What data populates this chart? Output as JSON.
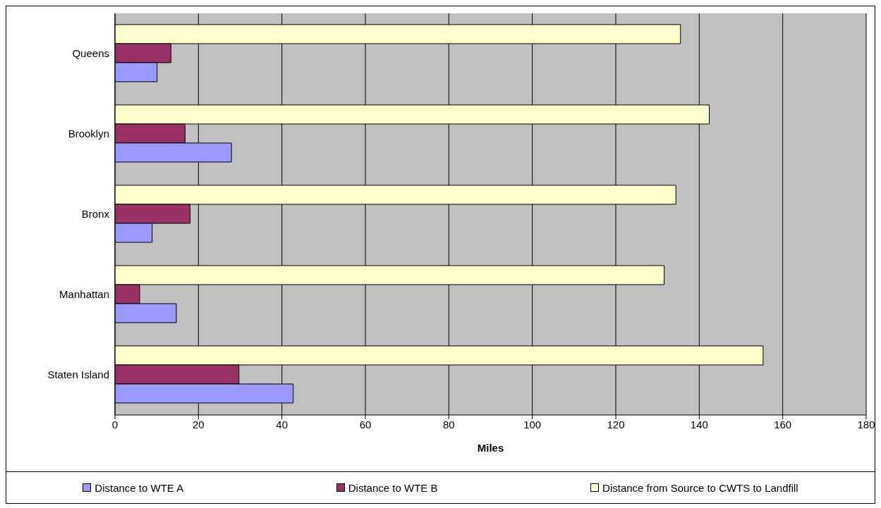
{
  "chart_data": {
    "type": "bar",
    "orientation": "horizontal",
    "xlabel": "Miles",
    "categories": [
      "Queens",
      "Brooklyn",
      "Bronx",
      "Manhattan",
      "Staten Island"
    ],
    "series": [
      {
        "name": "Distance to WTE A",
        "color": "#9999ff",
        "values": [
          10.1,
          27.9,
          8.9,
          14.7,
          42.7
        ]
      },
      {
        "name": "Distance to WTE B",
        "color": "#993366",
        "values": [
          13.4,
          16.8,
          18.0,
          5.9,
          29.7
        ]
      },
      {
        "name": "Distance from Source to CWTS to Landfill",
        "color": "#ffffcc",
        "values": [
          135.5,
          142.4,
          134.4,
          131.6,
          155.3
        ]
      }
    ],
    "xlim": [
      0,
      180
    ],
    "xticks": [
      0,
      20,
      40,
      60,
      80,
      100,
      120,
      140,
      160,
      180
    ],
    "grid": "x",
    "legend": "bottom"
  }
}
